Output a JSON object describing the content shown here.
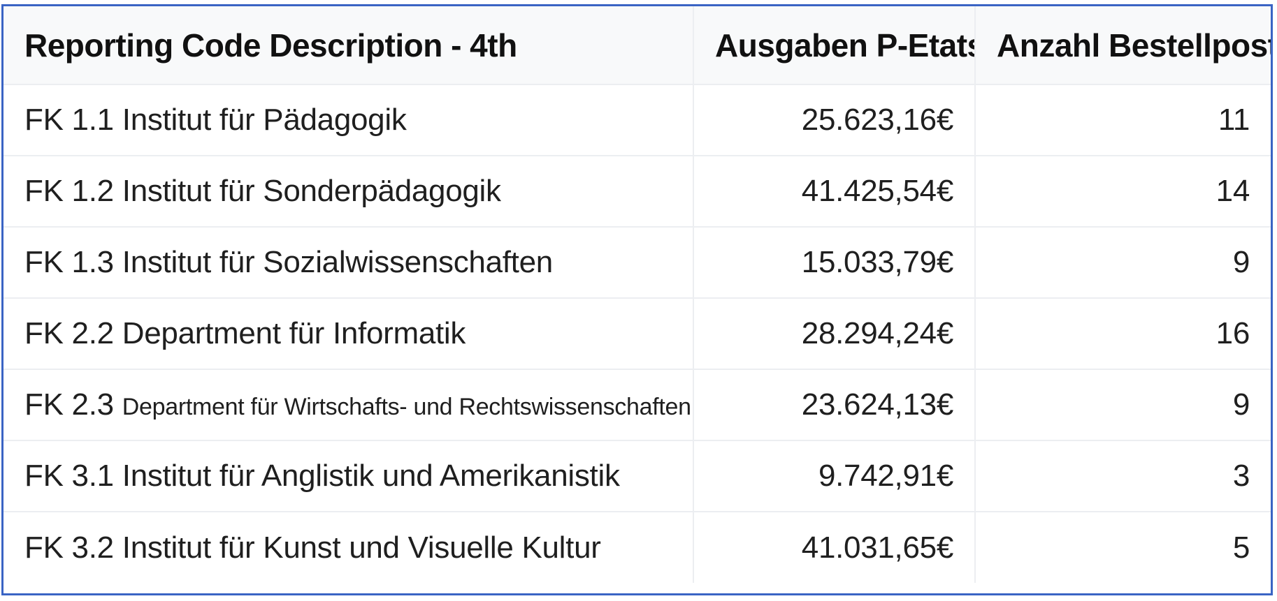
{
  "table": {
    "headers": {
      "description": "Reporting Code Description - 4th",
      "expenses": "Ausgaben P-Etats",
      "count": "Anzahl Bestellposten"
    },
    "rows": [
      {
        "code": "FK 1.1",
        "description": "Institut für Pädagogik",
        "expenses": "25.623,16€",
        "count": "11"
      },
      {
        "code": "FK 1.2",
        "description": "Institut für Sonderpädagogik",
        "expenses": "41.425,54€",
        "count": "14"
      },
      {
        "code": "FK 1.3",
        "description": "Institut für Sozialwissenschaften",
        "expenses": "15.033,79€",
        "count": "9"
      },
      {
        "code": "FK 2.2",
        "description": "Department für Informatik",
        "expenses": "28.294,24€",
        "count": "16"
      },
      {
        "code": "FK 2.3",
        "description": "Department für Wirtschafts- und Rechtswissenschaften",
        "expenses": "23.624,13€",
        "count": "9"
      },
      {
        "code": "FK 3.1",
        "description": "Institut für Anglistik und Amerikanistik",
        "expenses": "9.742,91€",
        "count": "3"
      },
      {
        "code": "FK 3.2",
        "description": "Institut für Kunst und Visuelle Kultur",
        "expenses": "41.031,65€",
        "count": "5"
      }
    ]
  },
  "colors": {
    "frame_border": "#3a64c4",
    "header_background": "#f8f9fa",
    "grid_line": "#eceef1"
  }
}
